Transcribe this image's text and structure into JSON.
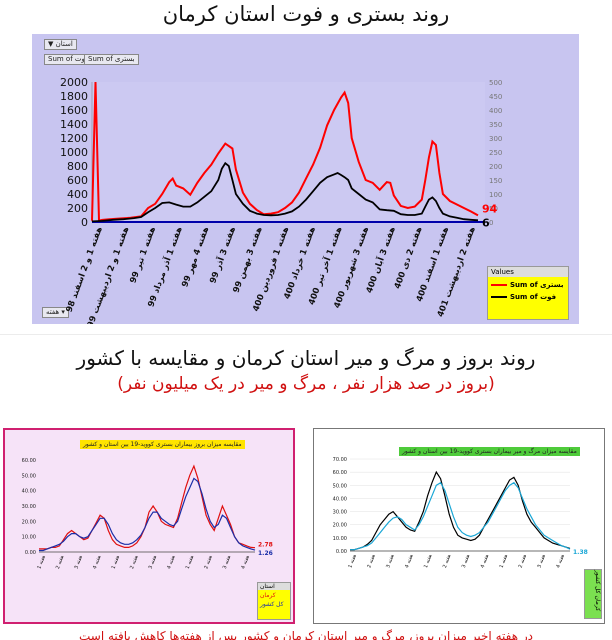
{
  "titles": {
    "main": "روند بستری و فوت استان کرمان",
    "second": "روند بروز و مرگ و میر استان کرمان و مقایسه با کشور",
    "second_sub": "(بروز در صد هزار نفر ، مرگ و میر در یک میلیون نفر)"
  },
  "main_controls": {
    "filter_label": "استان",
    "field_a": "Sum of فوت",
    "field_b": "Sum of بستری",
    "week_label": "هفته"
  },
  "bottom_note": "در هفته اخیر میزان بروز، مرگ و میر استان کرمان و کشور پس از هفته‌ها کاهش یافته است",
  "chart_data": [
    {
      "type": "line",
      "title": "",
      "x_ticks": [
        "هفته 1 و 2 اسفند 98",
        "هفته 1 و 2 اردیبهشت 99",
        "هفته 1 تیر 99",
        "هفته 1 آذر مرداد 99",
        "هفته 4 مهر 99",
        "هفته 3 آذر 99",
        "هفته 3 بهمن 99",
        "هفته 1 فروردین 400",
        "هفته 1 خرداد 400",
        "هفته 1 آخر تیر 400",
        "هفته 3 شهریور 400",
        "هفته 3 آبان 400",
        "هفته 2 دی 400",
        "هفته 1 اسفند 400",
        "هفته 2 اردیبهشت 401"
      ],
      "x_range": [
        0,
        112
      ],
      "ylim_left": [
        0,
        2000
      ],
      "yticks_left": [
        0,
        200,
        400,
        600,
        800,
        1000,
        1200,
        1400,
        1600,
        1800,
        2000
      ],
      "ylim_right": [
        0,
        500
      ],
      "yticks_right": [
        0,
        50,
        100,
        150,
        200,
        250,
        300,
        350,
        400,
        450,
        500
      ],
      "series": [
        {
          "name": "Sum of بستری",
          "color": "#ff0000",
          "axis": "left",
          "end_label": "94",
          "values": [
            [
              0,
              20
            ],
            [
              1,
              2000
            ],
            [
              2,
              20
            ],
            [
              3,
              30
            ],
            [
              5,
              40
            ],
            [
              8,
              50
            ],
            [
              11,
              60
            ],
            [
              14,
              80
            ],
            [
              16,
              200
            ],
            [
              18,
              260
            ],
            [
              20,
              400
            ],
            [
              22,
              570
            ],
            [
              23,
              620
            ],
            [
              24,
              520
            ],
            [
              26,
              480
            ],
            [
              28,
              390
            ],
            [
              30,
              560
            ],
            [
              32,
              700
            ],
            [
              34,
              820
            ],
            [
              36,
              980
            ],
            [
              38,
              1120
            ],
            [
              40,
              1050
            ],
            [
              41,
              750
            ],
            [
              43,
              420
            ],
            [
              45,
              260
            ],
            [
              47,
              170
            ],
            [
              49,
              110
            ],
            [
              51,
              120
            ],
            [
              53,
              140
            ],
            [
              55,
              200
            ],
            [
              57,
              280
            ],
            [
              59,
              420
            ],
            [
              61,
              620
            ],
            [
              63,
              820
            ],
            [
              65,
              1060
            ],
            [
              67,
              1380
            ],
            [
              69,
              1600
            ],
            [
              71,
              1780
            ],
            [
              72,
              1850
            ],
            [
              73,
              1700
            ],
            [
              74,
              1200
            ],
            [
              76,
              860
            ],
            [
              78,
              600
            ],
            [
              80,
              560
            ],
            [
              82,
              460
            ],
            [
              84,
              570
            ],
            [
              85,
              560
            ],
            [
              86,
              380
            ],
            [
              88,
              230
            ],
            [
              90,
              200
            ],
            [
              92,
              220
            ],
            [
              94,
              320
            ],
            [
              95,
              600
            ],
            [
              96,
              920
            ],
            [
              97,
              1150
            ],
            [
              98,
              1100
            ],
            [
              99,
              700
            ],
            [
              100,
              400
            ],
            [
              102,
              300
            ],
            [
              104,
              250
            ],
            [
              106,
              200
            ],
            [
              108,
              150
            ],
            [
              110,
              94
            ]
          ]
        },
        {
          "name": "Sum of فوت",
          "color": "#000000",
          "axis": "right",
          "end_label": "6",
          "values": [
            [
              0,
              2
            ],
            [
              3,
              4
            ],
            [
              6,
              8
            ],
            [
              9,
              10
            ],
            [
              12,
              14
            ],
            [
              14,
              18
            ],
            [
              16,
              35
            ],
            [
              18,
              50
            ],
            [
              20,
              68
            ],
            [
              22,
              70
            ],
            [
              24,
              62
            ],
            [
              26,
              55
            ],
            [
              28,
              55
            ],
            [
              30,
              70
            ],
            [
              32,
              90
            ],
            [
              34,
              110
            ],
            [
              36,
              150
            ],
            [
              37,
              190
            ],
            [
              38,
              210
            ],
            [
              39,
              200
            ],
            [
              40,
              150
            ],
            [
              41,
              100
            ],
            [
              43,
              65
            ],
            [
              45,
              40
            ],
            [
              47,
              30
            ],
            [
              49,
              25
            ],
            [
              51,
              24
            ],
            [
              53,
              25
            ],
            [
              55,
              30
            ],
            [
              57,
              38
            ],
            [
              59,
              55
            ],
            [
              61,
              80
            ],
            [
              63,
              110
            ],
            [
              65,
              140
            ],
            [
              67,
              160
            ],
            [
              69,
              170
            ],
            [
              70,
              175
            ],
            [
              71,
              168
            ],
            [
              72,
              160
            ],
            [
              73,
              150
            ],
            [
              74,
              120
            ],
            [
              76,
              100
            ],
            [
              78,
              80
            ],
            [
              80,
              70
            ],
            [
              82,
              45
            ],
            [
              84,
              42
            ],
            [
              86,
              40
            ],
            [
              88,
              28
            ],
            [
              90,
              25
            ],
            [
              92,
              25
            ],
            [
              94,
              30
            ],
            [
              95,
              55
            ],
            [
              96,
              80
            ],
            [
              97,
              88
            ],
            [
              98,
              75
            ],
            [
              99,
              50
            ],
            [
              100,
              30
            ],
            [
              102,
              20
            ],
            [
              104,
              15
            ],
            [
              106,
              10
            ],
            [
              108,
              8
            ],
            [
              110,
              6
            ]
          ]
        }
      ],
      "legend_title": "Values",
      "legend_entries": [
        "Sum of بستری",
        "Sum of فوت"
      ]
    },
    {
      "type": "line",
      "title": "مقایسه میزان بروز بیماران بستری کووید-19 بین استان و کشور",
      "ylim": [
        0,
        60
      ],
      "yticks": [
        "0.00",
        "10.00",
        "20.00",
        "30.00",
        "40.00",
        "50.00",
        "60.00"
      ],
      "series": [
        {
          "name": "کرمان",
          "color": "#e01010",
          "end_label": "2.78",
          "values": [
            2,
            2,
            2,
            3,
            3,
            4,
            8,
            12,
            14,
            12,
            10,
            8,
            9,
            14,
            19,
            24,
            22,
            14,
            8,
            5,
            4,
            3,
            3,
            4,
            6,
            10,
            16,
            26,
            30,
            26,
            20,
            18,
            17,
            16,
            22,
            32,
            42,
            50,
            56,
            48,
            36,
            24,
            18,
            14,
            22,
            30,
            24,
            18,
            10,
            6,
            5,
            4,
            3,
            2.78
          ]
        },
        {
          "name": "کل کشور",
          "color": "#1a2ea8",
          "end_label": "1.26",
          "values": [
            1,
            1,
            2,
            3,
            4,
            5,
            7,
            10,
            12,
            12,
            10,
            9,
            10,
            14,
            18,
            22,
            22,
            18,
            12,
            8,
            6,
            5,
            5,
            6,
            8,
            11,
            16,
            22,
            26,
            26,
            22,
            20,
            18,
            17,
            20,
            28,
            36,
            42,
            48,
            46,
            38,
            28,
            20,
            16,
            18,
            24,
            22,
            16,
            10,
            6,
            4,
            3,
            2,
            1.26
          ]
        }
      ],
      "legend_title": "استان",
      "legend_entries": [
        "کرمان",
        "کل کشور"
      ]
    },
    {
      "type": "line",
      "title": "مقایسه میزان مرگ و میر بیماران بستری کووید-19 بین استان و کشور",
      "ylim": [
        0,
        70
      ],
      "yticks": [
        "0.00",
        "10.00",
        "20.00",
        "30.00",
        "40.00",
        "50.00",
        "60.00",
        "70.00"
      ],
      "series": [
        {
          "name": "کرمان",
          "color": "#000000",
          "end_label": "",
          "values": [
            1,
            1,
            2,
            3,
            5,
            8,
            14,
            20,
            24,
            28,
            30,
            26,
            22,
            18,
            16,
            15,
            22,
            30,
            42,
            52,
            60,
            55,
            42,
            28,
            18,
            12,
            10,
            9,
            8,
            9,
            12,
            18,
            24,
            30,
            36,
            42,
            48,
            54,
            56,
            50,
            38,
            28,
            22,
            18,
            14,
            10,
            8,
            6,
            5,
            4,
            3,
            2
          ]
        },
        {
          "name": "کل کشور",
          "color": "#1aa7d6",
          "end_label": "1.38",
          "values": [
            1,
            1,
            2,
            3,
            4,
            6,
            10,
            14,
            18,
            22,
            25,
            26,
            24,
            20,
            18,
            16,
            20,
            26,
            34,
            42,
            50,
            52,
            46,
            36,
            26,
            18,
            14,
            12,
            11,
            12,
            14,
            18,
            22,
            28,
            34,
            40,
            46,
            50,
            52,
            48,
            40,
            32,
            26,
            20,
            16,
            12,
            10,
            8,
            6,
            4,
            3,
            1.38
          ]
        }
      ],
      "legend_entries": [
        "کرمان",
        "کل کشور"
      ]
    }
  ],
  "colors": {
    "main_bg": "#c8c5f0",
    "bed": "#ff0000",
    "death": "#000000",
    "accent_red": "#d01010",
    "legend_yellow": "#ffff00"
  }
}
